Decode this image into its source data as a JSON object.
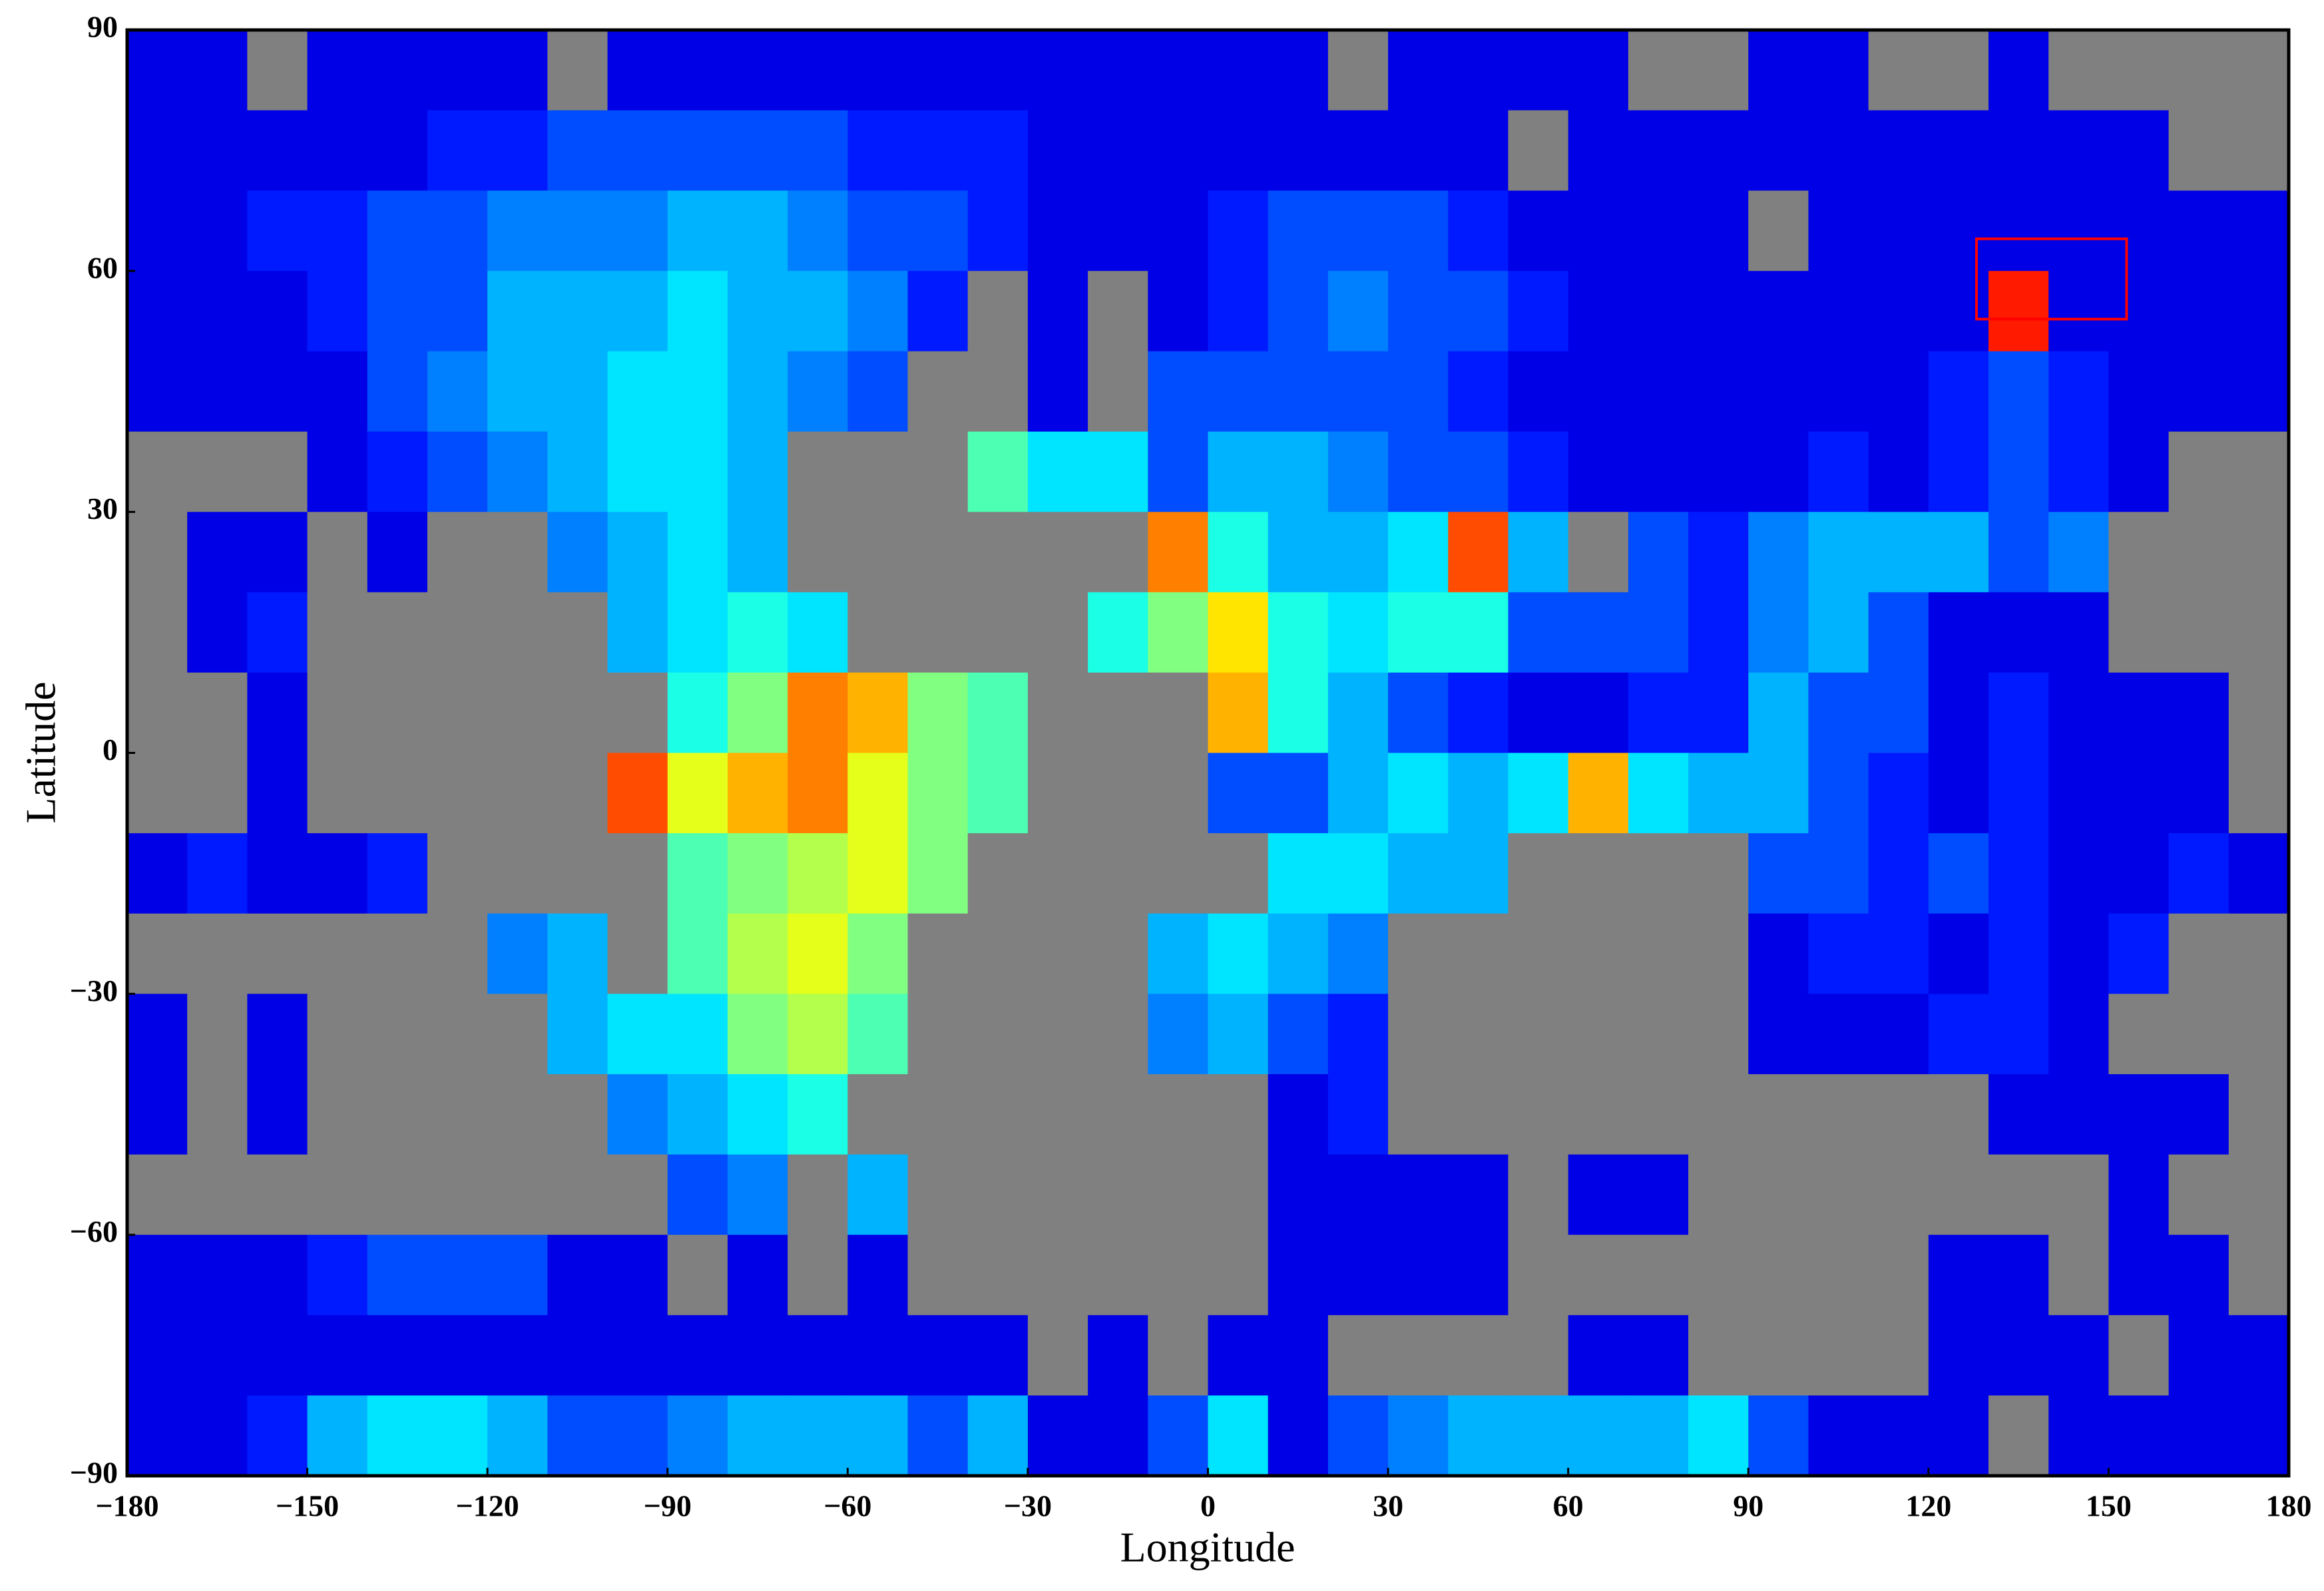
{
  "chart_data": {
    "type": "heatmap",
    "xlabel": "Longitude",
    "ylabel": "Latitude",
    "xlim": [
      -180,
      180
    ],
    "ylim": [
      -90,
      90
    ],
    "xticks": [
      {
        "value": -180,
        "label": "−180"
      },
      {
        "value": -150,
        "label": "−150"
      },
      {
        "value": -120,
        "label": "−120"
      },
      {
        "value": -90,
        "label": "−90"
      },
      {
        "value": -60,
        "label": "−60"
      },
      {
        "value": -30,
        "label": "−30"
      },
      0,
      30,
      60,
      90,
      120,
      150,
      180
    ],
    "yticks": [
      90,
      60,
      30,
      0,
      {
        "value": -30,
        "label": "−30"
      },
      {
        "value": -60,
        "label": "−60"
      },
      {
        "value": -90,
        "label": "−90"
      }
    ],
    "x_edges": [
      -180,
      -170,
      -160,
      -150,
      -140,
      -130,
      -120,
      -110,
      -100,
      -90,
      -80,
      -70,
      -60,
      -50,
      -40,
      -30,
      -20,
      -10,
      0,
      10,
      20,
      30,
      40,
      50,
      60,
      70,
      80,
      90,
      100,
      110,
      120,
      130,
      140,
      150,
      160,
      170,
      180
    ],
    "y_edges": [
      90,
      80,
      70,
      60,
      50,
      40,
      30,
      20,
      10,
      0,
      -10,
      -20,
      -30,
      -40,
      -50,
      -60,
      -70,
      -80,
      -90
    ],
    "colormap": "jet",
    "missing_color": "#808080",
    "values": [
      [
        0.1,
        0.1,
        null,
        0.1,
        0.1,
        0.1,
        0.1,
        null,
        0.1,
        0.1,
        0.1,
        0.1,
        0.1,
        0.1,
        0.1,
        0.1,
        0.1,
        0.1,
        0.1,
        0.1,
        null,
        0.1,
        0.1,
        0.1,
        0.1,
        null,
        null,
        0.1,
        0.1,
        null,
        null,
        0.1,
        null,
        null,
        null,
        null
      ],
      [
        0.1,
        0.1,
        0.1,
        0.1,
        0.1,
        0.15,
        0.15,
        0.2,
        0.2,
        0.2,
        0.2,
        0.2,
        0.15,
        0.15,
        0.15,
        0.1,
        0.1,
        0.1,
        0.1,
        0.1,
        0.1,
        0.1,
        0.1,
        null,
        0.1,
        0.1,
        0.1,
        0.1,
        0.1,
        0.1,
        0.1,
        0.1,
        0.1,
        0.1,
        null,
        null
      ],
      [
        0.1,
        0.1,
        0.15,
        0.15,
        0.2,
        0.2,
        0.25,
        0.25,
        0.25,
        0.3,
        0.3,
        0.25,
        0.2,
        0.2,
        0.15,
        0.1,
        0.1,
        0.1,
        0.15,
        0.2,
        0.2,
        0.2,
        0.15,
        0.1,
        0.1,
        0.1,
        0.1,
        null,
        0.1,
        0.1,
        0.1,
        0.1,
        0.1,
        0.1,
        0.1,
        0.1
      ],
      [
        0.1,
        0.1,
        0.1,
        0.15,
        0.2,
        0.2,
        0.3,
        0.3,
        0.3,
        0.35,
        0.3,
        0.3,
        0.25,
        0.15,
        null,
        0.1,
        null,
        0.1,
        0.15,
        0.2,
        0.25,
        0.2,
        0.2,
        0.15,
        0.1,
        0.1,
        0.1,
        0.1,
        0.1,
        0.1,
        0.1,
        0.85,
        0.1,
        0.1,
        0.1,
        0.1
      ],
      [
        0.1,
        0.1,
        0.1,
        0.1,
        0.2,
        0.25,
        0.3,
        0.3,
        0.35,
        0.35,
        0.3,
        0.25,
        0.2,
        null,
        null,
        0.1,
        null,
        0.2,
        0.2,
        0.2,
        0.2,
        0.2,
        0.15,
        0.1,
        0.1,
        0.1,
        0.1,
        0.1,
        0.1,
        0.1,
        0.15,
        0.2,
        0.15,
        0.1,
        0.1,
        0.1
      ],
      [
        null,
        null,
        null,
        0.1,
        0.15,
        0.2,
        0.25,
        0.3,
        0.35,
        0.35,
        0.3,
        null,
        null,
        null,
        0.45,
        0.35,
        0.35,
        0.2,
        0.3,
        0.3,
        0.25,
        0.2,
        0.2,
        0.15,
        0.1,
        0.1,
        0.1,
        0.1,
        0.15,
        0.1,
        0.15,
        0.2,
        0.15,
        0.1,
        null,
        null
      ],
      [
        null,
        0.1,
        0.1,
        null,
        0.1,
        null,
        null,
        0.25,
        0.3,
        0.35,
        0.3,
        null,
        null,
        null,
        null,
        null,
        null,
        0.75,
        0.4,
        0.3,
        0.3,
        0.35,
        0.8,
        0.3,
        null,
        0.2,
        0.15,
        0.25,
        0.3,
        0.3,
        0.3,
        0.2,
        0.25,
        null,
        null,
        null
      ],
      [
        null,
        0.1,
        0.15,
        null,
        null,
        null,
        null,
        null,
        0.3,
        0.35,
        0.4,
        0.35,
        null,
        null,
        null,
        null,
        0.4,
        0.5,
        0.65,
        0.4,
        0.35,
        0.4,
        0.4,
        0.2,
        0.2,
        0.2,
        0.15,
        0.25,
        0.3,
        0.2,
        0.1,
        0.1,
        0.1,
        null,
        null,
        null
      ],
      [
        null,
        null,
        0.1,
        null,
        null,
        null,
        null,
        null,
        null,
        0.4,
        0.5,
        0.75,
        0.7,
        0.5,
        0.45,
        null,
        null,
        null,
        0.7,
        0.4,
        0.3,
        0.2,
        0.15,
        0.1,
        0.1,
        0.15,
        0.15,
        0.3,
        0.2,
        0.2,
        0.1,
        0.15,
        0.1,
        0.1,
        0.1,
        null
      ],
      [
        null,
        null,
        0.1,
        null,
        null,
        null,
        null,
        null,
        0.8,
        0.6,
        0.7,
        0.75,
        0.6,
        0.5,
        0.45,
        null,
        null,
        null,
        0.2,
        0.2,
        0.3,
        0.35,
        0.3,
        0.35,
        0.7,
        0.35,
        0.3,
        0.3,
        0.2,
        0.15,
        0.1,
        0.15,
        0.1,
        0.1,
        0.1,
        null
      ],
      [
        0.1,
        0.15,
        0.1,
        0.1,
        0.15,
        null,
        null,
        null,
        null,
        0.45,
        0.5,
        0.55,
        0.6,
        0.5,
        null,
        null,
        null,
        null,
        null,
        0.35,
        0.35,
        0.3,
        0.3,
        null,
        null,
        null,
        null,
        0.2,
        0.2,
        0.15,
        0.2,
        0.15,
        0.1,
        0.1,
        0.15,
        0.1
      ],
      [
        null,
        null,
        null,
        null,
        null,
        null,
        0.25,
        0.3,
        null,
        0.45,
        0.55,
        0.6,
        0.5,
        null,
        null,
        null,
        null,
        0.3,
        0.35,
        0.3,
        0.25,
        null,
        null,
        null,
        null,
        null,
        null,
        0.1,
        0.15,
        0.15,
        0.1,
        0.15,
        0.1,
        0.15,
        null,
        null
      ],
      [
        0.1,
        null,
        0.1,
        null,
        null,
        null,
        null,
        0.3,
        0.35,
        0.35,
        0.5,
        0.55,
        0.45,
        null,
        null,
        null,
        null,
        0.25,
        0.3,
        0.2,
        0.15,
        null,
        null,
        null,
        null,
        null,
        null,
        0.1,
        0.1,
        0.1,
        0.15,
        0.15,
        0.1,
        null,
        null,
        null
      ],
      [
        0.1,
        null,
        0.1,
        null,
        null,
        null,
        null,
        null,
        0.25,
        0.3,
        0.35,
        0.4,
        null,
        null,
        null,
        null,
        null,
        null,
        null,
        0.1,
        0.15,
        null,
        null,
        null,
        null,
        null,
        null,
        null,
        null,
        null,
        null,
        0.1,
        0.1,
        0.1,
        0.1,
        null
      ],
      [
        null,
        null,
        null,
        null,
        null,
        null,
        null,
        null,
        null,
        0.2,
        0.25,
        null,
        0.3,
        null,
        null,
        null,
        null,
        null,
        null,
        0.1,
        0.1,
        0.1,
        0.1,
        null,
        0.1,
        0.1,
        null,
        null,
        null,
        null,
        null,
        null,
        null,
        0.1,
        null,
        null
      ],
      [
        0.1,
        0.1,
        0.1,
        0.15,
        0.2,
        0.2,
        0.2,
        0.1,
        0.1,
        null,
        0.1,
        null,
        0.1,
        null,
        null,
        null,
        null,
        null,
        null,
        0.1,
        0.1,
        0.1,
        0.1,
        null,
        null,
        null,
        null,
        null,
        null,
        null,
        0.1,
        0.1,
        null,
        0.1,
        0.1,
        null
      ],
      [
        0.1,
        0.1,
        0.1,
        0.1,
        0.1,
        0.1,
        0.1,
        0.1,
        0.1,
        0.1,
        0.1,
        0.1,
        0.1,
        0.1,
        0.1,
        null,
        0.1,
        null,
        0.1,
        0.1,
        null,
        null,
        null,
        null,
        0.1,
        0.1,
        null,
        null,
        null,
        null,
        0.1,
        0.1,
        0.1,
        null,
        0.1,
        0.1
      ],
      [
        0.1,
        0.1,
        0.15,
        0.3,
        0.35,
        0.35,
        0.3,
        0.2,
        0.2,
        0.25,
        0.3,
        0.3,
        0.3,
        0.2,
        0.3,
        0.1,
        0.1,
        0.2,
        0.35,
        0.1,
        0.2,
        0.25,
        0.3,
        0.3,
        0.3,
        0.3,
        0.35,
        0.2,
        0.1,
        0.1,
        0.1,
        null,
        0.1,
        0.1,
        0.1,
        0.1
      ]
    ],
    "highlight_box": {
      "xlim": [
        128,
        153
      ],
      "ylim": [
        54,
        64
      ],
      "color": "#ff0000"
    }
  }
}
